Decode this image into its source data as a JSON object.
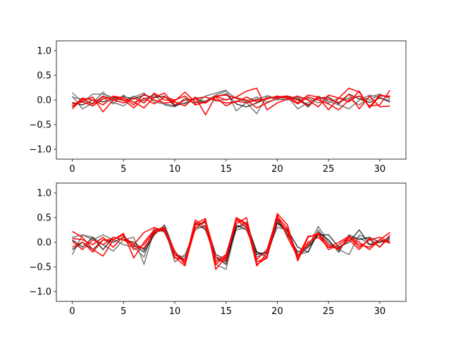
{
  "chart_data": [
    {
      "type": "line",
      "title": "",
      "xlabel": "",
      "ylabel": "",
      "xlim": [
        -1.55,
        32.55
      ],
      "ylim": [
        -1.2,
        1.2
      ],
      "xticks": [
        0,
        5,
        10,
        15,
        20,
        25,
        30
      ],
      "xtick_labels": [
        "0",
        "5",
        "10",
        "15",
        "20",
        "25",
        "30"
      ],
      "yticks": [
        -1.0,
        -0.5,
        0.0,
        0.5,
        1.0
      ],
      "ytick_labels": [
        "−1.0",
        "−0.5",
        "0.0",
        "0.5",
        "1.0"
      ],
      "grid": false,
      "legend": false,
      "colors": {
        "dark": "#000000",
        "gray": "#7a7a7a",
        "red": "#ff0000"
      },
      "series": [
        {
          "color": "gray",
          "values": [
            0.15,
            -0.05,
            0.12,
            0.12,
            0.05,
            -0.02,
            0.08,
            -0.02,
            0.12,
            -0.1,
            -0.14,
            0.04,
            -0.08,
            0.08,
            0.14,
            0.2,
            -0.22,
            -0.05,
            -0.28,
            0.09,
            0.03,
            0.07,
            -0.18,
            -0.05,
            0.05,
            -0.02,
            -0.1,
            -0.18,
            0.0,
            0.1,
            0.05,
            -0.05
          ]
        },
        {
          "color": "gray",
          "values": [
            0.08,
            -0.18,
            -0.06,
            0.16,
            -0.05,
            -0.12,
            0.06,
            0.14,
            -0.04,
            -0.08,
            -0.12,
            0.0,
            -0.05,
            -0.02,
            0.1,
            0.18,
            0.03,
            -0.04,
            0.02,
            0.08,
            0.0,
            0.04,
            0.06,
            -0.15,
            0.08,
            -0.06,
            0.04,
            0.02,
            -0.1,
            0.06,
            0.12,
            0.02
          ]
        },
        {
          "color": "dark",
          "values": [
            -0.05,
            -0.1,
            0.0,
            -0.04,
            0.03,
            0.07,
            0.02,
            0.1,
            0.05,
            0.08,
            -0.12,
            -0.06,
            0.02,
            -0.04,
            0.07,
            0.12,
            -0.08,
            -0.14,
            -0.06,
            0.03,
            0.06,
            0.08,
            0.02,
            -0.1,
            0.04,
            0.06,
            -0.08,
            0.12,
            0.02,
            -0.05,
            0.04,
            -0.02
          ]
        },
        {
          "color": "gray",
          "values": [
            0.05,
            0.02,
            -0.12,
            0.06,
            -0.08,
            0.1,
            -0.05,
            0.02,
            0.1,
            0.06,
            -0.04,
            -0.08,
            0.04,
            0.06,
            -0.02,
            0.01,
            0.05,
            -0.02,
            0.06,
            -0.04,
            0.02,
            0.0,
            0.04,
            0.03,
            -0.06,
            0.02,
            -0.05,
            0.04,
            0.08,
            0.0,
            0.1,
            0.06
          ]
        },
        {
          "color": "red",
          "values": [
            -0.18,
            0.02,
            -0.08,
            0.08,
            0.0,
            -0.06,
            0.04,
            -0.06,
            0.14,
            0.0,
            -0.02,
            0.16,
            -0.04,
            -0.06,
            0.08,
            0.0,
            0.06,
            0.18,
            0.24,
            -0.2,
            -0.06,
            0.02,
            0.08,
            0.0,
            -0.14,
            0.1,
            0.04,
            -0.04,
            0.18,
            -0.16,
            0.08,
            0.08
          ]
        },
        {
          "color": "red",
          "values": [
            -0.12,
            -0.02,
            0.06,
            -0.24,
            0.0,
            0.04,
            -0.1,
            0.12,
            0.0,
            -0.06,
            -0.04,
            -0.12,
            0.06,
            -0.3,
            0.08,
            0.1,
            0.04,
            0.0,
            -0.16,
            -0.06,
            0.04,
            0.06,
            0.0,
            -0.12,
            0.06,
            -0.2,
            0.04,
            0.24,
            0.16,
            -0.14,
            0.1,
            0.06
          ]
        },
        {
          "color": "red",
          "values": [
            -0.08,
            -0.04,
            -0.12,
            0.02,
            0.06,
            0.0,
            -0.16,
            0.04,
            -0.08,
            0.06,
            0.0,
            0.08,
            -0.1,
            -0.04,
            0.06,
            -0.12,
            -0.02,
            -0.06,
            0.0,
            0.02,
            0.08,
            0.04,
            -0.08,
            0.06,
            0.0,
            -0.08,
            -0.2,
            0.0,
            0.08,
            -0.12,
            -0.1,
            0.2
          ]
        },
        {
          "color": "red",
          "values": [
            -0.14,
            0.04,
            0.0,
            -0.1,
            0.08,
            0.04,
            -0.04,
            -0.16,
            0.06,
            0.14,
            -0.1,
            0.0,
            0.02,
            0.06,
            0.0,
            -0.06,
            -0.04,
            0.06,
            -0.04,
            0.04,
            0.06,
            0.08,
            -0.06,
            0.1,
            0.06,
            0.02,
            -0.06,
            0.12,
            -0.18,
            0.08,
            -0.14,
            -0.12
          ]
        }
      ]
    },
    {
      "type": "line",
      "title": "",
      "xlabel": "",
      "ylabel": "",
      "xlim": [
        -1.55,
        32.55
      ],
      "ylim": [
        -1.2,
        1.2
      ],
      "xticks": [
        0,
        5,
        10,
        15,
        20,
        25,
        30
      ],
      "xtick_labels": [
        "0",
        "5",
        "10",
        "15",
        "20",
        "25",
        "30"
      ],
      "yticks": [
        -1.0,
        -0.5,
        0.0,
        0.5,
        1.0
      ],
      "ytick_labels": [
        "−1.0",
        "−0.5",
        "0.0",
        "0.5",
        "1.0"
      ],
      "grid": false,
      "legend": false,
      "colors": {
        "dark": "#000000",
        "gray": "#7a7a7a",
        "red": "#ff0000"
      },
      "series": [
        {
          "color": "gray",
          "values": [
            -0.25,
            0.15,
            0.1,
            -0.05,
            -0.18,
            0.05,
            0.1,
            -0.45,
            0.25,
            0.3,
            -0.4,
            -0.25,
            0.25,
            0.35,
            -0.45,
            -0.55,
            0.3,
            0.35,
            -0.2,
            -0.25,
            0.38,
            0.2,
            -0.3,
            -0.1,
            0.32,
            0.0,
            -0.15,
            -0.25,
            0.15,
            0.05,
            -0.1,
            0.1
          ]
        },
        {
          "color": "gray",
          "values": [
            0.1,
            0.15,
            0.05,
            0.15,
            0.05,
            -0.05,
            -0.1,
            -0.3,
            0.3,
            0.2,
            -0.25,
            -0.3,
            0.3,
            0.3,
            -0.35,
            -0.4,
            0.25,
            0.3,
            -0.3,
            -0.2,
            0.3,
            0.25,
            -0.25,
            -0.2,
            0.25,
            -0.05,
            -0.1,
            0.05,
            0.1,
            -0.05,
            0.05,
            0.0
          ]
        },
        {
          "color": "dark",
          "values": [
            -0.15,
            0.0,
            -0.15,
            0.05,
            0.0,
            0.1,
            -0.05,
            -0.2,
            0.15,
            0.35,
            -0.2,
            -0.4,
            0.4,
            0.25,
            -0.3,
            -0.45,
            0.35,
            0.25,
            -0.25,
            -0.2,
            0.45,
            0.15,
            -0.2,
            -0.1,
            0.15,
            0.15,
            -0.1,
            0.0,
            0.25,
            -0.05,
            0.0,
            0.05
          ]
        },
        {
          "color": "dark",
          "values": [
            0.05,
            -0.1,
            0.1,
            -0.15,
            0.1,
            0.05,
            0.0,
            -0.15,
            0.2,
            0.25,
            -0.25,
            -0.35,
            0.35,
            0.4,
            -0.25,
            -0.35,
            0.3,
            0.4,
            -0.2,
            -0.3,
            0.4,
            0.25,
            -0.1,
            -0.2,
            0.2,
            0.05,
            -0.2,
            0.15,
            0.05,
            0.1,
            0.0,
            0.1
          ]
        },
        {
          "color": "red",
          "values": [
            0.22,
            0.1,
            -0.15,
            -0.28,
            0.05,
            0.18,
            -0.32,
            0.0,
            0.25,
            0.28,
            -0.3,
            -0.48,
            0.38,
            0.48,
            -0.55,
            -0.3,
            0.5,
            0.38,
            -0.48,
            -0.22,
            0.58,
            0.35,
            -0.38,
            0.1,
            0.18,
            -0.05,
            -0.15,
            0.1,
            -0.05,
            -0.1,
            0.05,
            0.2
          ]
        },
        {
          "color": "red",
          "values": [
            0.08,
            0.05,
            -0.05,
            0.1,
            -0.1,
            0.12,
            -0.05,
            0.2,
            0.3,
            0.22,
            -0.25,
            -0.4,
            0.45,
            0.3,
            -0.4,
            -0.25,
            0.45,
            0.3,
            -0.35,
            -0.15,
            0.52,
            0.28,
            -0.28,
            -0.05,
            0.2,
            -0.15,
            -0.05,
            0.1,
            -0.1,
            0.05,
            0.1,
            0.0
          ]
        },
        {
          "color": "red",
          "values": [
            -0.1,
            0.0,
            -0.2,
            0.05,
            0.05,
            0.15,
            -0.15,
            -0.05,
            0.22,
            0.3,
            -0.32,
            -0.35,
            0.35,
            0.42,
            -0.45,
            -0.28,
            0.38,
            0.5,
            -0.4,
            -0.3,
            0.48,
            0.22,
            -0.35,
            0.0,
            0.1,
            -0.1,
            -0.12,
            0.05,
            -0.15,
            0.08,
            -0.1,
            0.15
          ]
        },
        {
          "color": "red",
          "values": [
            0.02,
            -0.15,
            0.05,
            -0.05,
            0.1,
            0.05,
            -0.08,
            -0.12,
            0.18,
            0.28,
            -0.18,
            -0.45,
            0.28,
            0.45,
            -0.3,
            -0.38,
            0.48,
            0.35,
            -0.45,
            -0.32,
            0.55,
            0.1,
            -0.3,
            0.12,
            0.15,
            -0.1,
            0.0,
            0.12,
            0.0,
            -0.15,
            0.05,
            -0.02
          ]
        }
      ]
    }
  ]
}
